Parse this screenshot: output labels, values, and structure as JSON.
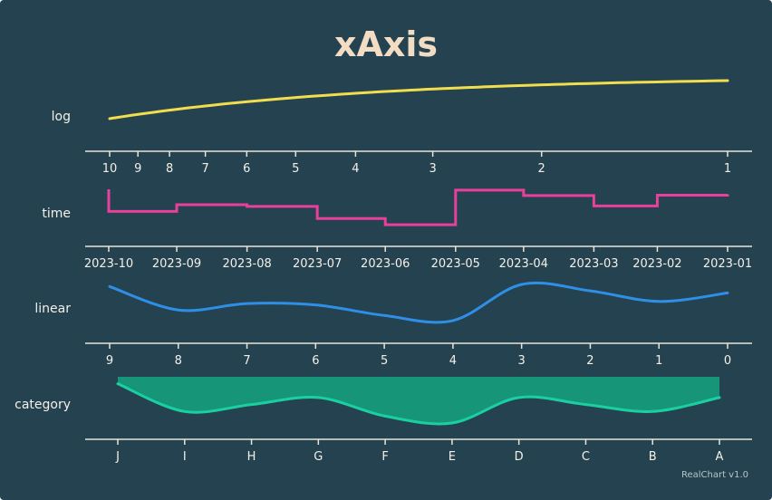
{
  "title": "xAxis",
  "credit": "RealChart v1.0",
  "chart_data": [
    {
      "type": "line",
      "axis_label": "log",
      "x_axis": "logarithmic",
      "reversed": true,
      "color": "#f1de4e",
      "tick_labels": [
        "10",
        "9",
        "8",
        "7",
        "6",
        "5",
        "4",
        "3",
        "2",
        "1"
      ],
      "x": [
        10,
        1
      ],
      "y": [
        0.0,
        1.0
      ],
      "ylim": [
        0,
        1
      ]
    },
    {
      "type": "step-line",
      "axis_label": "time",
      "x_axis": "time",
      "reversed": true,
      "color": "#e8409b",
      "tick_labels": [
        "2023-10",
        "2023-09",
        "2023-08",
        "2023-07",
        "2023-06",
        "2023-05",
        "2023-04",
        "2023-03",
        "2023-02",
        "2023-01"
      ],
      "x": [
        "2023-10",
        "2023-09",
        "2023-08",
        "2023-07",
        "2023-06",
        "2023-05",
        "2023-04",
        "2023-03",
        "2023-02",
        "2023-01"
      ],
      "y": [
        0.47,
        0.63,
        0.59,
        0.3,
        0.15,
        0.98,
        0.85,
        0.6,
        0.86,
        0.88
      ],
      "y_start": 1.0,
      "ylim": [
        0,
        1
      ]
    },
    {
      "type": "spline",
      "axis_label": "linear",
      "x_axis": "linear",
      "reversed": true,
      "color": "#2f8fe6",
      "tick_labels": [
        "9",
        "8",
        "7",
        "6",
        "5",
        "4",
        "3",
        "2",
        "1",
        "0"
      ],
      "x": [
        9,
        8,
        7,
        6,
        5,
        4,
        3,
        2,
        1,
        0
      ],
      "y": [
        0.95,
        0.4,
        0.55,
        0.52,
        0.27,
        0.15,
        1.0,
        0.85,
        0.6,
        0.8
      ],
      "ylim": [
        0,
        1
      ]
    },
    {
      "type": "area-spline",
      "axis_label": "category",
      "x_axis": "category",
      "reversed": true,
      "color": "#1ad0a2",
      "fill": "#179579",
      "tick_labels": [
        "J",
        "I",
        "H",
        "G",
        "F",
        "E",
        "D",
        "C",
        "B",
        "A"
      ],
      "categories": [
        "J",
        "I",
        "H",
        "G",
        "F",
        "E",
        "D",
        "C",
        "B",
        "A"
      ],
      "values": [
        0.85,
        0.25,
        0.4,
        0.55,
        0.15,
        0.0,
        0.55,
        0.4,
        0.25,
        0.55
      ],
      "ylim": [
        0,
        1
      ]
    }
  ]
}
